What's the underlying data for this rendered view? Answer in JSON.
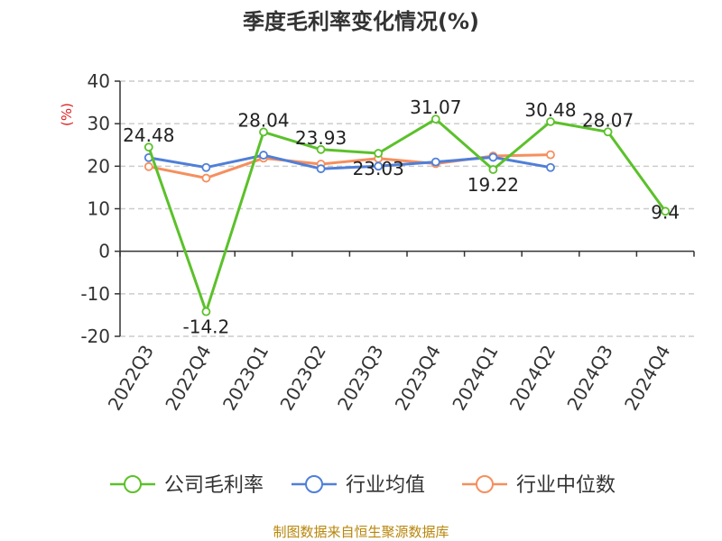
{
  "chart_data": {
    "type": "line",
    "title": "季度毛利率变化情况(%)",
    "ylabel": "(%)",
    "xlabel": "",
    "categories": [
      "2022Q3",
      "2022Q4",
      "2023Q1",
      "2023Q2",
      "2023Q3",
      "2023Q4",
      "2024Q1",
      "2024Q2",
      "2024Q3",
      "2024Q4"
    ],
    "ylim": [
      -20,
      40
    ],
    "yticks": [
      40,
      30,
      20,
      10,
      0,
      -10,
      -20
    ],
    "grid": true,
    "legend_position": "bottom",
    "series": [
      {
        "name": "公司毛利率",
        "color": "#5bc12a",
        "values": [
          24.48,
          -14.2,
          28.04,
          23.93,
          23.03,
          31.07,
          19.22,
          30.48,
          28.07,
          9.4
        ],
        "labels": [
          "24.48",
          "-14.2",
          "28.04",
          "23.93",
          "23.03",
          "31.07",
          "19.22",
          "30.48",
          "28.07",
          "9.4"
        ]
      },
      {
        "name": "行业均值",
        "color": "#4f7fd8",
        "values": [
          22.0,
          19.7,
          22.6,
          19.4,
          20.0,
          21.0,
          22.1,
          19.7,
          null,
          null
        ]
      },
      {
        "name": "行业中位数",
        "color": "#f58f5e",
        "values": [
          19.9,
          17.2,
          21.9,
          20.5,
          21.8,
          20.6,
          22.4,
          22.7,
          null,
          null
        ]
      }
    ]
  },
  "footer": {
    "source": "制图数据来自恒生聚源数据库"
  },
  "colors": {
    "axis": "#333333",
    "grid": "#cccccc",
    "ylabel": "#e02020",
    "source": "#b8860b"
  }
}
